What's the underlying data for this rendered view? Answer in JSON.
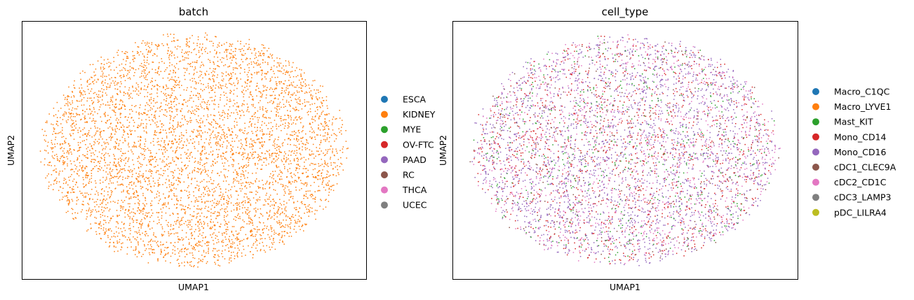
{
  "chart_data": [
    {
      "type": "scatter",
      "title": "batch",
      "xlabel": "UMAP1",
      "ylabel": "UMAP2",
      "grid": false,
      "ticks": false,
      "legend_position": "right",
      "legend": [
        {
          "label": "ESCA",
          "color": "#1f77b4"
        },
        {
          "label": "KIDNEY",
          "color": "#ff7f0e"
        },
        {
          "label": "MYE",
          "color": "#2ca02c"
        },
        {
          "label": "OV-FTC",
          "color": "#d62728"
        },
        {
          "label": "PAAD",
          "color": "#9467bd"
        },
        {
          "label": "RC",
          "color": "#8c564b"
        },
        {
          "label": "THCA",
          "color": "#e377c2"
        },
        {
          "label": "UCEC",
          "color": "#7f7f7f"
        }
      ],
      "point_distribution": {
        "shape": "ellipse",
        "dominant_category": "KIDNEY",
        "mix": {
          "KIDNEY": 1.0
        }
      }
    },
    {
      "type": "scatter",
      "title": "cell_type",
      "xlabel": "UMAP1",
      "ylabel": "UMAP2",
      "grid": false,
      "ticks": false,
      "legend_position": "right",
      "legend": [
        {
          "label": "Macro_C1QC",
          "color": "#1f77b4"
        },
        {
          "label": "Macro_LYVE1",
          "color": "#ff7f0e"
        },
        {
          "label": "Mast_KIT",
          "color": "#2ca02c"
        },
        {
          "label": "Mono_CD14",
          "color": "#d62728"
        },
        {
          "label": "Mono_CD16",
          "color": "#9467bd"
        },
        {
          "label": "cDC1_CLEC9A",
          "color": "#8c564b"
        },
        {
          "label": "cDC2_CD1C",
          "color": "#e377c2"
        },
        {
          "label": "cDC3_LAMP3",
          "color": "#7f7f7f"
        },
        {
          "label": "pDC_LILRA4",
          "color": "#bcbd22"
        }
      ],
      "point_distribution": {
        "shape": "ellipse",
        "mix": {
          "Mono_CD16": 0.42,
          "cDC2_CD1C": 0.22,
          "Mono_CD14": 0.22,
          "Mast_KIT": 0.09,
          "cDC1_CLEC9A": 0.05
        }
      }
    }
  ]
}
